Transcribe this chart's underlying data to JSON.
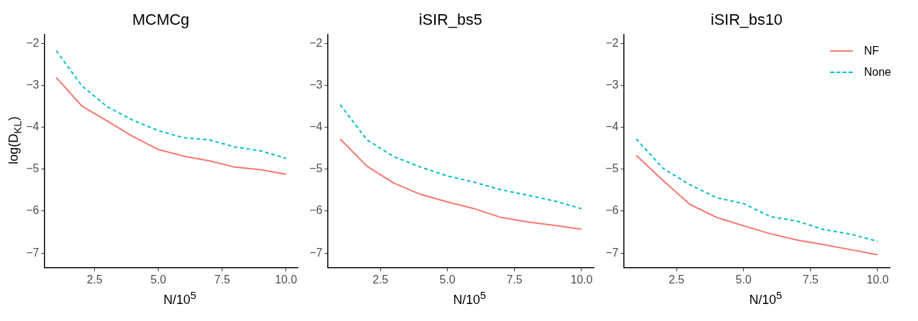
{
  "chart_data": [
    {
      "type": "line",
      "title": "MCMCg",
      "xlabel": "N/10$^{5}$",
      "ylabel": "log(D$_{KL}$)",
      "x": [
        1,
        2,
        3,
        4,
        5,
        6,
        7,
        8,
        9,
        10
      ],
      "xlim": [
        0.55,
        10.45
      ],
      "ylim": [
        -7.35,
        -1.78
      ],
      "xticks": [
        {
          "value": 2.5,
          "label": "2.5"
        },
        {
          "value": 5,
          "label": "5.0"
        },
        {
          "value": 7.5,
          "label": "7.5"
        },
        {
          "value": 10,
          "label": "10.0"
        }
      ],
      "yticks": [
        -7,
        -6,
        -5,
        -4,
        -3,
        -2
      ],
      "grid": false,
      "marker": "none",
      "series": [
        {
          "color": "#f8766d",
          "line_style": "solid",
          "values": [
            -2.81,
            -3.49,
            -3.85,
            -4.22,
            -4.53,
            -4.69,
            -4.8,
            -4.95,
            -5.01,
            -5.12
          ]
        },
        {
          "color": "#00bfc4",
          "line_style": "dashed",
          "values": [
            -2.17,
            -3.01,
            -3.51,
            -3.83,
            -4.08,
            -4.25,
            -4.3,
            -4.47,
            -4.56,
            -4.74
          ]
        }
      ]
    },
    {
      "type": "line",
      "title": "iSIR_bs5",
      "xlabel": "N/10$^{5}$",
      "x": [
        1,
        2,
        3,
        4,
        5,
        6,
        7,
        8,
        9,
        10
      ],
      "xlim": [
        0.55,
        10.45
      ],
      "ylim": [
        -7.35,
        -1.78
      ],
      "xticks": [
        {
          "value": 2.5,
          "label": "2.5"
        },
        {
          "value": 5,
          "label": "5.0"
        },
        {
          "value": 7.5,
          "label": "7.5"
        },
        {
          "value": 10,
          "label": "10.0"
        }
      ],
      "yticks": [
        -7,
        -6,
        -5,
        -4,
        -3,
        -2
      ],
      "grid": false,
      "marker": "none",
      "series": [
        {
          "color": "#f8766d",
          "line_style": "solid",
          "values": [
            -4.28,
            -4.93,
            -5.33,
            -5.6,
            -5.78,
            -5.94,
            -6.15,
            -6.26,
            -6.34,
            -6.43
          ]
        },
        {
          "color": "#00bfc4",
          "line_style": "dashed",
          "values": [
            -3.46,
            -4.3,
            -4.7,
            -4.95,
            -5.16,
            -5.31,
            -5.49,
            -5.62,
            -5.76,
            -5.94
          ]
        }
      ]
    },
    {
      "type": "line",
      "title": "iSIR_bs10",
      "xlabel": "N/10$^{5}$",
      "x": [
        1,
        2,
        3,
        4,
        5,
        6,
        7,
        8,
        9,
        10
      ],
      "xlim": [
        0.55,
        10.45
      ],
      "ylim": [
        -7.35,
        -1.78
      ],
      "xticks": [
        {
          "value": 2.5,
          "label": "2.5"
        },
        {
          "value": 5,
          "label": "5.0"
        },
        {
          "value": 7.5,
          "label": "7.5"
        },
        {
          "value": 10,
          "label": "10.0"
        }
      ],
      "yticks": [
        -7,
        -6,
        -5,
        -4,
        -3,
        -2
      ],
      "grid": false,
      "marker": "none",
      "legend": "top right",
      "series": [
        {
          "name": "NF",
          "color": "#f8766d",
          "line_style": "solid",
          "values": [
            -4.67,
            -5.27,
            -5.84,
            -6.15,
            -6.35,
            -6.54,
            -6.69,
            -6.8,
            -6.92,
            -7.04
          ]
        },
        {
          "name": "None",
          "color": "#00bfc4",
          "line_style": "dashed",
          "values": [
            -4.28,
            -4.98,
            -5.37,
            -5.68,
            -5.82,
            -6.13,
            -6.24,
            -6.44,
            -6.55,
            -6.72
          ]
        }
      ]
    }
  ]
}
